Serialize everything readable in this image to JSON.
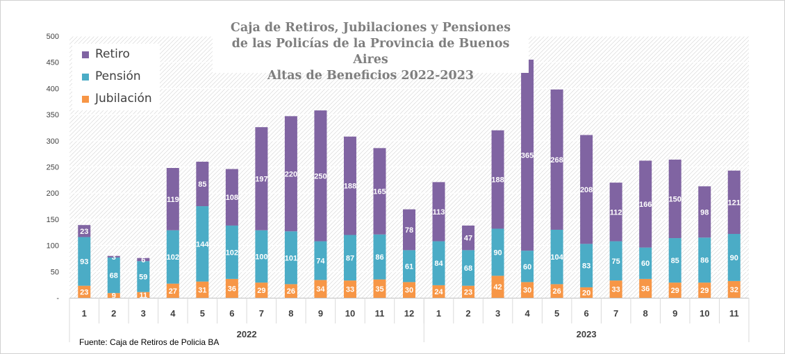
{
  "title_lines": [
    "Caja de Retiros, Jubilaciones y Pensiones",
    "de las Policías de la Provincia de Buenos Aires",
    "Altas de Beneficios 2022-2023"
  ],
  "source": "Fuente: Caja de Retiros de Policia BA",
  "colors": {
    "Retiro": "#8064a2",
    "Pensión": "#4bacc6",
    "Jubilación": "#f79646"
  },
  "chart_data": {
    "type": "bar",
    "stacked": true,
    "title": "Caja de Retiros, Jubilaciones y Pensiones de las Policías de la Provincia de Buenos Aires Altas de Beneficios 2022-2023",
    "categories": [
      "1",
      "2",
      "3",
      "4",
      "5",
      "6",
      "7",
      "8",
      "9",
      "10",
      "11",
      "12",
      "1",
      "2",
      "3",
      "4",
      "5",
      "6",
      "7",
      "8",
      "9",
      "10",
      "11"
    ],
    "groups": [
      {
        "label": "2022",
        "count": 12
      },
      {
        "label": "2023",
        "count": 11
      }
    ],
    "y_ticks": [
      "-",
      "50",
      "100",
      "150",
      "200",
      "250",
      "300",
      "350",
      "400",
      "450",
      "500"
    ],
    "ylim": [
      0,
      500
    ],
    "legend_position": "top-left",
    "series": [
      {
        "name": "Jubilación",
        "values": [
          23,
          9,
          11,
          27,
          31,
          36,
          29,
          26,
          34,
          33,
          35,
          30,
          24,
          23,
          42,
          30,
          26,
          20,
          33,
          36,
          29,
          29,
          32
        ]
      },
      {
        "name": "Pensión",
        "values": [
          93,
          68,
          59,
          102,
          144,
          102,
          100,
          101,
          74,
          87,
          86,
          61,
          84,
          68,
          90,
          60,
          104,
          83,
          75,
          60,
          85,
          86,
          90
        ]
      },
      {
        "name": "Retiro",
        "values": [
          23,
          3,
          6,
          119,
          85,
          108,
          197,
          220,
          250,
          188,
          165,
          78,
          113,
          47,
          188,
          365,
          268,
          208,
          112,
          166,
          150,
          98,
          121
        ]
      }
    ],
    "legend_order": [
      "Retiro",
      "Pensión",
      "Jubilación"
    ]
  }
}
